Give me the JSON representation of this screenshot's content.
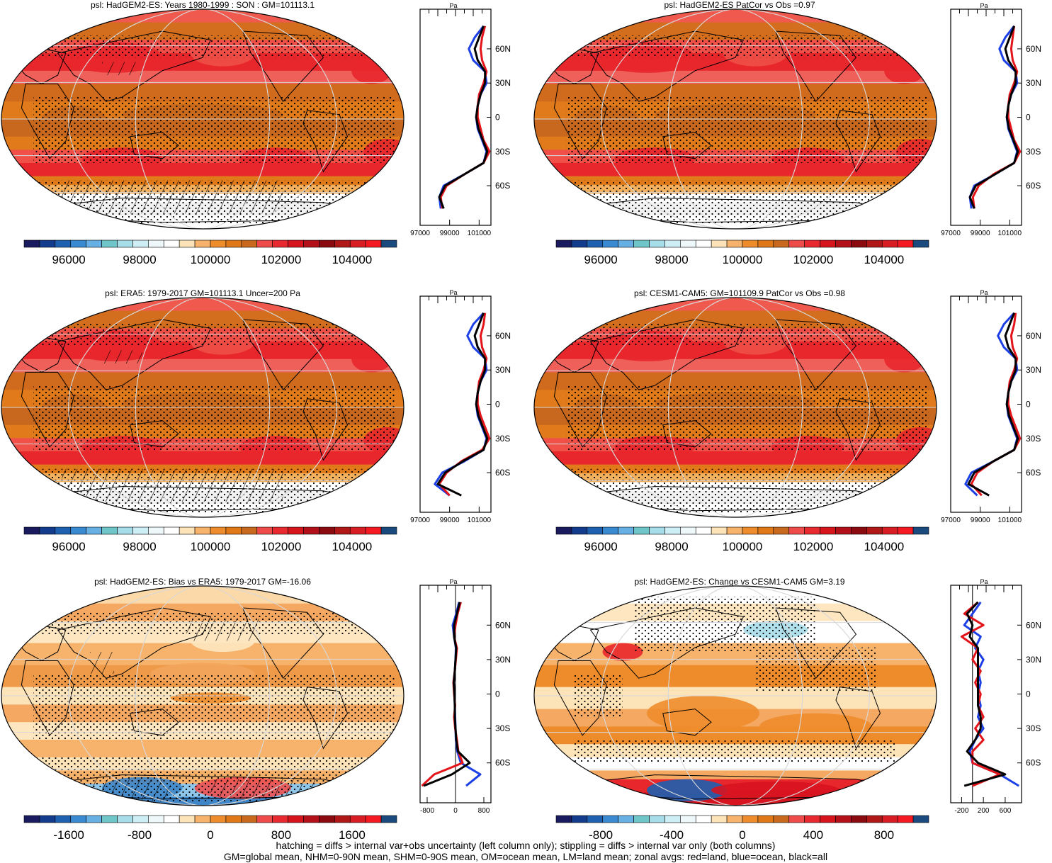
{
  "figure": {
    "footnote_lines": [
      "hatching = diffs > internal var+obs uncertainty (left column only); stippling = diffs > internal var only (both columns)",
      "GM=global mean, NHM=0-90N mean, SHM=0-90S mean, OM=ocean mean, LM=land mean; zonal avgs: red=land, blue=ocean, black=all"
    ],
    "lat_ticks": [
      "60N",
      "30N",
      "0",
      "30S",
      "60S"
    ],
    "units": "Pa",
    "colors": {
      "land": "#e3151b",
      "ocean": "#1c3fe6",
      "all": "#000000"
    },
    "full_palette": [
      "#1a1b5e",
      "#143c8c",
      "#1d61b0",
      "#3a8ad2",
      "#66b0e4",
      "#6fc6c8",
      "#a6dde9",
      "#cdeef5",
      "#eef8fb",
      "#ffffff",
      "#fde3b8",
      "#f7b36c",
      "#ee8c2c",
      "#e07818",
      "#c8691e",
      "#f04b4b",
      "#e82a30",
      "#d6141c",
      "#b3101a",
      "#8a0a10",
      "#b01818",
      "#d81e24",
      "#f51a22",
      "#1a4a7e"
    ],
    "abs_cbar_labels": [
      "96000",
      "98000",
      "100000",
      "102000",
      "104000"
    ],
    "left_bias_cbar_labels": [
      "-1600",
      "-800",
      "0",
      "800",
      "1600"
    ],
    "right_change_cbar_labels": [
      "-800",
      "-400",
      "0",
      "400",
      "800"
    ]
  },
  "chart_data": [
    {
      "type": "heatmap",
      "title": "psl: HadGEM2-ES: Years 1980-1999 : SON : GM=101113.1",
      "colorbar": "abs",
      "zonal_profile": {
        "xticks": [
          "97000",
          "99000",
          "101000"
        ],
        "xlim": [
          97000,
          101800
        ],
        "lat": [
          80,
          70,
          60,
          50,
          40,
          30,
          20,
          10,
          0,
          -10,
          -20,
          -30,
          -40,
          -50,
          -60,
          -70,
          -80
        ],
        "land": [
          101400,
          101200,
          101100,
          101200,
          101500,
          101300,
          101000,
          100900,
          100900,
          101100,
          101300,
          101700,
          101300,
          100000,
          98800,
          98400,
          98500
        ],
        "ocean": [
          101300,
          100700,
          100300,
          100600,
          101400,
          101500,
          101100,
          100900,
          100800,
          100900,
          101200,
          101500,
          101300,
          100000,
          98600,
          98300,
          98400
        ],
        "all": [
          101300,
          101000,
          100700,
          100900,
          101400,
          101400,
          101100,
          100900,
          100800,
          100950,
          101250,
          101550,
          101300,
          100000,
          98700,
          98300,
          98600
        ]
      }
    },
    {
      "type": "heatmap",
      "title": "psl: HadGEM2-ES PatCor vs Obs =0.97",
      "colorbar": "abs",
      "zonal_profile": {
        "xticks": [
          "97000",
          "99000",
          "101000"
        ],
        "xlim": [
          97000,
          101800
        ],
        "lat": [
          80,
          70,
          60,
          50,
          40,
          30,
          20,
          10,
          0,
          -10,
          -20,
          -30,
          -40,
          -50,
          -60,
          -70,
          -80
        ],
        "land": [
          101300,
          101200,
          101100,
          101200,
          101500,
          101300,
          101000,
          100900,
          100900,
          101100,
          101300,
          101700,
          101300,
          99900,
          98900,
          98500,
          98600
        ],
        "ocean": [
          101300,
          100700,
          100300,
          100600,
          101400,
          101500,
          101100,
          100900,
          100800,
          100900,
          101200,
          101500,
          101300,
          100000,
          98600,
          98300,
          98400
        ],
        "all": [
          101300,
          101000,
          100700,
          100900,
          101400,
          101400,
          101100,
          100900,
          100800,
          100950,
          101250,
          101550,
          101300,
          100000,
          98700,
          98300,
          98600
        ]
      }
    },
    {
      "type": "heatmap",
      "title": "psl: ERA5: 1979-2017 GM=101113.1 Uncer=200 Pa",
      "colorbar": "abs",
      "zonal_profile": {
        "xticks": [
          "97000",
          "99000",
          "101000"
        ],
        "xlim": [
          97000,
          101800
        ],
        "lat": [
          80,
          70,
          60,
          50,
          40,
          30,
          20,
          10,
          0,
          -10,
          -20,
          -30,
          -40,
          -50,
          -60,
          -70,
          -80
        ],
        "land": [
          101400,
          101300,
          101100,
          101200,
          101500,
          101300,
          101000,
          100900,
          100900,
          101100,
          101400,
          101700,
          101200,
          99800,
          98800,
          98300,
          99000
        ],
        "ocean": [
          101300,
          100600,
          100200,
          100600,
          101400,
          101500,
          101100,
          100900,
          100800,
          100900,
          101200,
          101500,
          101300,
          100000,
          98500,
          98000,
          99000
        ],
        "all": [
          101300,
          101000,
          100700,
          100900,
          101400,
          101400,
          101100,
          100900,
          100800,
          100950,
          101250,
          101550,
          101300,
          99900,
          98700,
          98200,
          99800
        ]
      }
    },
    {
      "type": "heatmap",
      "title": "psl: CESM1-CAM5: GM=101109.9 PatCor vs Obs =0.98",
      "colorbar": "abs",
      "zonal_profile": {
        "xticks": [
          "97000",
          "99000",
          "101000"
        ],
        "xlim": [
          97000,
          101800
        ],
        "lat": [
          80,
          70,
          60,
          50,
          40,
          30,
          20,
          10,
          0,
          -10,
          -20,
          -30,
          -40,
          -50,
          -60,
          -70,
          -80
        ],
        "land": [
          101400,
          101300,
          101100,
          101200,
          101500,
          101300,
          101000,
          100900,
          100900,
          101100,
          101400,
          101700,
          101300,
          99900,
          98800,
          98400,
          99100
        ],
        "ocean": [
          101300,
          100600,
          100200,
          100600,
          101400,
          101500,
          101100,
          100900,
          100800,
          100900,
          101200,
          101500,
          101300,
          99900,
          98400,
          98000,
          98800
        ],
        "all": [
          101300,
          101000,
          100700,
          100900,
          101400,
          101400,
          101100,
          100900,
          100800,
          100950,
          101250,
          101550,
          101300,
          99900,
          98600,
          98200,
          99600
        ]
      }
    },
    {
      "type": "heatmap",
      "title": "psl: HadGEM2-ES: Bias vs ERA5: 1979-2017  GM=-16.06",
      "colorbar": "bias",
      "zonal_profile": {
        "xticks": [
          "-800",
          "0",
          "800"
        ],
        "xlim": [
          -1000,
          1000
        ],
        "lat": [
          80,
          70,
          60,
          50,
          40,
          30,
          20,
          10,
          0,
          -10,
          -20,
          -30,
          -40,
          -50,
          -60,
          -70,
          -80
        ],
        "land": [
          150,
          60,
          0,
          -40,
          40,
          10,
          -20,
          -60,
          -40,
          -10,
          -40,
          -10,
          40,
          80,
          200,
          -600,
          -950
        ],
        "ocean": [
          100,
          20,
          -80,
          -40,
          10,
          0,
          -20,
          -50,
          -30,
          -20,
          -10,
          0,
          10,
          50,
          150,
          700,
          300
        ],
        "all": [
          120,
          40,
          -40,
          -40,
          20,
          0,
          -20,
          -50,
          -30,
          -20,
          -20,
          0,
          20,
          70,
          400,
          -100,
          -900
        ]
      }
    },
    {
      "type": "heatmap",
      "title": "psl: HadGEM2-ES: Change vs CESM1-CAM5 GM=3.19",
      "colorbar": "change",
      "zonal_profile": {
        "xticks": [
          "-200",
          "200",
          "600"
        ],
        "xlim": [
          -400,
          900
        ],
        "lat": [
          80,
          70,
          60,
          50,
          40,
          30,
          20,
          10,
          0,
          -10,
          -20,
          -30,
          -40,
          -50,
          -60,
          -70,
          -80
        ],
        "land": [
          100,
          -150,
          200,
          -200,
          100,
          0,
          150,
          50,
          150,
          100,
          200,
          50,
          200,
          0,
          0,
          500,
          0
        ],
        "ocean": [
          150,
          0,
          -150,
          150,
          50,
          200,
          100,
          150,
          100,
          150,
          100,
          200,
          50,
          -50,
          0,
          500,
          850
        ],
        "all": [
          100,
          -100,
          0,
          -50,
          100,
          100,
          100,
          100,
          100,
          100,
          150,
          150,
          50,
          -100,
          100,
          600,
          -150
        ]
      }
    }
  ]
}
